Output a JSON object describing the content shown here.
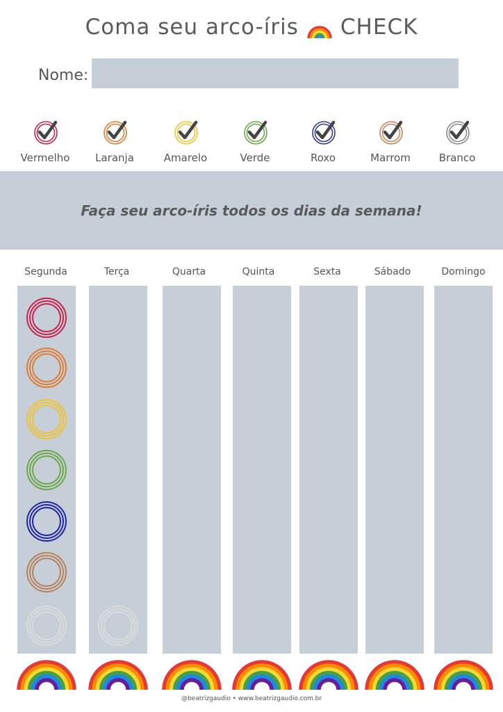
{
  "header": {
    "title_before": "Coma seu arco-íris",
    "title_icon": "rainbow-emoji-icon",
    "title_after": "CHECK"
  },
  "name_field": {
    "label": "Nome:",
    "value": ""
  },
  "legend": [
    {
      "label": "Vermelho",
      "color": "#c8234b"
    },
    {
      "label": "Laranja",
      "color": "#e07b32"
    },
    {
      "label": "Amarelo",
      "color": "#f2c12e"
    },
    {
      "label": "Verde",
      "color": "#6aaa46"
    },
    {
      "label": "Roxo",
      "color": "#2e3a9c"
    },
    {
      "label": "Marrom",
      "color": "#c8865a"
    },
    {
      "label": "Branco",
      "color": "#8a8a8a"
    }
  ],
  "banner": {
    "text": "Faça seu arco-íris todos os dias da semana!"
  },
  "week": {
    "days": [
      "Segunda",
      "Terça",
      "Quarta",
      "Quinta",
      "Sexta",
      "Sábado",
      "Domingo"
    ],
    "circle_colors": [
      "#c8234b",
      "#e07b32",
      "#f2c12e",
      "#6aaa46",
      "#2024a8",
      "#b98059",
      "#dcdcdc"
    ]
  },
  "colors": {
    "panel": "#c6ced8",
    "check": "#444444",
    "rainbow": [
      "#e53935",
      "#fb8c00",
      "#fdd835",
      "#43a047",
      "#1e88e5",
      "#6a1b9a"
    ]
  },
  "footer": {
    "text": "@beatrizgaudio • www.beatrizgaudio.com.br"
  }
}
